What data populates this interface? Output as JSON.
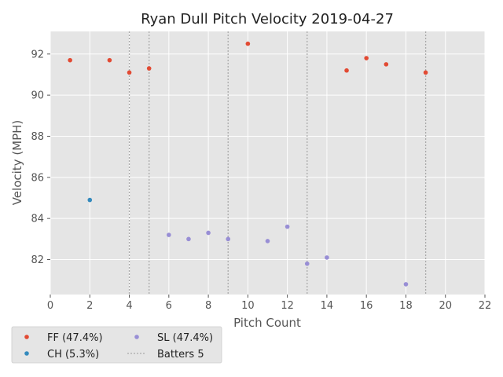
{
  "chart_data": {
    "type": "scatter",
    "title": "Ryan Dull Pitch Velocity 2019-04-27",
    "xlabel": "Pitch Count",
    "ylabel": "Velocity (MPH)",
    "xlim": [
      0,
      22
    ],
    "ylim": [
      80.3,
      93.1
    ],
    "xticks": [
      0,
      2,
      4,
      6,
      8,
      10,
      12,
      14,
      16,
      18,
      20,
      22
    ],
    "yticks": [
      82,
      84,
      86,
      88,
      90,
      92
    ],
    "grid": true,
    "legend_position": "below-left",
    "series": [
      {
        "name": "FF (47.4%)",
        "color": "#e24a33",
        "points": [
          {
            "x": 1,
            "y": 91.7
          },
          {
            "x": 3,
            "y": 91.7
          },
          {
            "x": 4,
            "y": 91.1
          },
          {
            "x": 5,
            "y": 91.3
          },
          {
            "x": 10,
            "y": 92.5
          },
          {
            "x": 15,
            "y": 91.2
          },
          {
            "x": 16,
            "y": 91.8
          },
          {
            "x": 17,
            "y": 91.5
          },
          {
            "x": 19,
            "y": 91.1
          }
        ]
      },
      {
        "name": "CH (5.3%)",
        "color": "#348abd",
        "points": [
          {
            "x": 2,
            "y": 84.9
          }
        ]
      },
      {
        "name": "SL (47.4%)",
        "color": "#988ed5",
        "points": [
          {
            "x": 6,
            "y": 83.2
          },
          {
            "x": 7,
            "y": 83.0
          },
          {
            "x": 8,
            "y": 83.3
          },
          {
            "x": 9,
            "y": 83.0
          },
          {
            "x": 11,
            "y": 82.9
          },
          {
            "x": 12,
            "y": 83.6
          },
          {
            "x": 13,
            "y": 81.8
          },
          {
            "x": 14,
            "y": 82.1
          },
          {
            "x": 18,
            "y": 80.8
          }
        ]
      }
    ],
    "batter_lines": {
      "name": "Batters 5",
      "color": "#aaaaaa",
      "x": [
        4,
        5,
        9,
        13,
        19
      ]
    },
    "legend_order": [
      "FF (47.4%)",
      "SL (47.4%)",
      "CH (5.3%)",
      "Batters 5"
    ]
  }
}
